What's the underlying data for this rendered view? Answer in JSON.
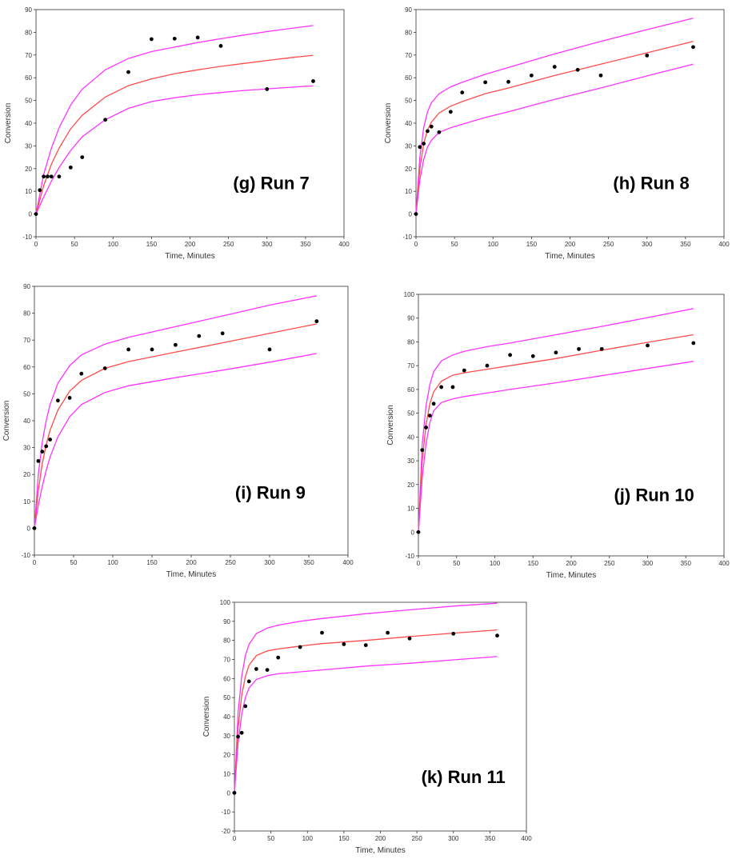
{
  "style": {
    "fit_color": "#ff4b4b",
    "bound_color": "#ff33ff",
    "point_color": "#000000"
  },
  "chart_data": [
    {
      "type": "scatter",
      "id": "g",
      "annotation": "(g) Run 7",
      "xlabel": "Time, Minutes",
      "ylabel": "Conversion",
      "xlim": [
        0,
        400
      ],
      "ylim": [
        -10,
        90
      ],
      "xticks": [
        0,
        50,
        100,
        150,
        200,
        250,
        300,
        350,
        400
      ],
      "yticks": [
        -10,
        0,
        10,
        20,
        30,
        40,
        50,
        60,
        70,
        80,
        90
      ],
      "grid": false,
      "series": [
        {
          "kind": "points",
          "x": [
            0,
            5,
            10,
            15,
            20,
            30,
            45,
            60,
            90,
            120,
            150,
            180,
            210,
            240,
            300,
            360
          ],
          "y": [
            0,
            10.5,
            16.5,
            16.5,
            16.5,
            16.5,
            20.5,
            25,
            41.5,
            62.5,
            77,
            77.2,
            77.7,
            74,
            55,
            58.5
          ]
        },
        {
          "kind": "upper",
          "x": [
            0,
            10,
            20,
            30,
            45,
            60,
            90,
            120,
            150,
            180,
            210,
            240,
            270,
            300,
            330,
            360
          ],
          "y": [
            0,
            17.5,
            29,
            38,
            48,
            55,
            63.5,
            68.5,
            71.5,
            73.5,
            75.5,
            77.2,
            78.8,
            80.3,
            81.7,
            83
          ]
        },
        {
          "kind": "fit",
          "x": [
            0,
            10,
            20,
            30,
            45,
            60,
            90,
            120,
            150,
            180,
            210,
            240,
            270,
            300,
            330,
            360
          ],
          "y": [
            0,
            12.5,
            22,
            29,
            37.5,
            43.5,
            51.5,
            56.5,
            59.5,
            61.8,
            63.5,
            65,
            66.3,
            67.6,
            68.8,
            69.9
          ]
        },
        {
          "kind": "lower",
          "x": [
            0,
            10,
            20,
            30,
            45,
            60,
            90,
            120,
            150,
            180,
            210,
            240,
            270,
            300,
            330,
            360
          ],
          "y": [
            0,
            7.5,
            14.5,
            20.5,
            28,
            34,
            41.5,
            46.5,
            49.5,
            51.2,
            52.5,
            53.5,
            54.4,
            55.1,
            55.8,
            56.4
          ]
        }
      ]
    },
    {
      "type": "scatter",
      "id": "h",
      "annotation": "(h) Run 8",
      "xlabel": "Time, Minutes",
      "ylabel": "Conversion",
      "xlim": [
        0,
        400
      ],
      "ylim": [
        -10,
        90
      ],
      "xticks": [
        0,
        50,
        100,
        150,
        200,
        250,
        300,
        350,
        400
      ],
      "yticks": [
        -10,
        0,
        10,
        20,
        30,
        40,
        50,
        60,
        70,
        80,
        90
      ],
      "grid": false,
      "series": [
        {
          "kind": "points",
          "x": [
            0,
            5,
            10,
            15,
            20,
            30,
            45,
            60,
            90,
            120,
            150,
            180,
            210,
            240,
            300,
            360
          ],
          "y": [
            0,
            29.5,
            31,
            36.5,
            38.5,
            36,
            45,
            53.5,
            58,
            58.2,
            61,
            64.8,
            63.5,
            61,
            69.8,
            73.5
          ]
        },
        {
          "kind": "upper",
          "x": [
            0,
            5,
            10,
            15,
            20,
            30,
            45,
            60,
            90,
            120,
            180,
            240,
            300,
            360
          ],
          "y": [
            0,
            25,
            38,
            45,
            49,
            53,
            56,
            58,
            61.5,
            64.5,
            70.5,
            76,
            81.2,
            86.2
          ]
        },
        {
          "kind": "fit",
          "x": [
            0,
            5,
            10,
            15,
            20,
            30,
            45,
            60,
            90,
            120,
            180,
            240,
            300,
            360
          ],
          "y": [
            0,
            20,
            31,
            37,
            40.5,
            44.5,
            47.5,
            49.5,
            53,
            55.5,
            61,
            66,
            71,
            76
          ]
        },
        {
          "kind": "lower",
          "x": [
            0,
            5,
            10,
            15,
            20,
            30,
            45,
            60,
            90,
            120,
            180,
            240,
            300,
            360
          ],
          "y": [
            0,
            15,
            24,
            29.5,
            32.5,
            36,
            38,
            39.5,
            42.5,
            45,
            50.5,
            55.5,
            60.8,
            66
          ]
        }
      ]
    },
    {
      "type": "scatter",
      "id": "i",
      "annotation": "(i) Run 9",
      "xlabel": "Time, Minutes",
      "ylabel": "Conversion",
      "xlim": [
        0,
        400
      ],
      "ylim": [
        -10,
        90
      ],
      "xticks": [
        0,
        50,
        100,
        150,
        200,
        250,
        300,
        350,
        400
      ],
      "yticks": [
        -10,
        0,
        10,
        20,
        30,
        40,
        50,
        60,
        70,
        80,
        90
      ],
      "grid": false,
      "series": [
        {
          "kind": "points",
          "x": [
            0,
            5,
            10,
            15,
            20,
            30,
            45,
            60,
            90,
            120,
            150,
            180,
            210,
            240,
            300,
            360
          ],
          "y": [
            0,
            25,
            28.5,
            30.5,
            33,
            47.5,
            48.5,
            57.5,
            59.5,
            66.5,
            66.5,
            68.2,
            71.5,
            72.5,
            66.5,
            77
          ]
        },
        {
          "kind": "upper",
          "x": [
            0,
            5,
            10,
            15,
            20,
            30,
            45,
            60,
            90,
            120,
            180,
            240,
            300,
            360
          ],
          "y": [
            0,
            20,
            32,
            40,
            46,
            54,
            60.5,
            64.5,
            68.5,
            71,
            75,
            79,
            83,
            86.5
          ]
        },
        {
          "kind": "fit",
          "x": [
            0,
            5,
            10,
            15,
            20,
            30,
            45,
            60,
            90,
            120,
            180,
            240,
            300,
            360
          ],
          "y": [
            0,
            14,
            24,
            31,
            36.5,
            44,
            51,
            55,
            59.5,
            62,
            65.5,
            69,
            72.5,
            76
          ]
        },
        {
          "kind": "lower",
          "x": [
            0,
            5,
            10,
            15,
            20,
            30,
            45,
            60,
            90,
            120,
            180,
            240,
            300,
            360
          ],
          "y": [
            0,
            8.5,
            15.5,
            21.5,
            26.5,
            34,
            41.5,
            46,
            50.5,
            53,
            56,
            58.8,
            61.8,
            65
          ]
        }
      ]
    },
    {
      "type": "scatter",
      "id": "j",
      "annotation": "(j) Run 10",
      "xlabel": "Time, Minutes",
      "ylabel": "Conversion",
      "xlim": [
        0,
        400
      ],
      "ylim": [
        -10,
        100
      ],
      "xticks": [
        0,
        50,
        100,
        150,
        200,
        250,
        300,
        350,
        400
      ],
      "yticks": [
        -10,
        0,
        10,
        20,
        30,
        40,
        50,
        60,
        70,
        80,
        90,
        100
      ],
      "grid": false,
      "series": [
        {
          "kind": "points",
          "x": [
            0,
            5,
            10,
            15,
            20,
            30,
            45,
            60,
            90,
            120,
            150,
            180,
            210,
            240,
            300,
            360
          ],
          "y": [
            0,
            34.5,
            44,
            49,
            54,
            61,
            61,
            68,
            70,
            74.5,
            74,
            75.5,
            77,
            77,
            78.5,
            79.5
          ]
        },
        {
          "kind": "upper",
          "x": [
            0,
            5,
            10,
            15,
            20,
            30,
            45,
            60,
            90,
            120,
            180,
            240,
            300,
            360
          ],
          "y": [
            0,
            37,
            53,
            62,
            67.5,
            72,
            74.5,
            76,
            78,
            79.5,
            83,
            86.5,
            90.2,
            94
          ]
        },
        {
          "kind": "fit",
          "x": [
            0,
            5,
            10,
            15,
            20,
            30,
            45,
            60,
            90,
            120,
            180,
            240,
            300,
            360
          ],
          "y": [
            0,
            30,
            45,
            54,
            59,
            63.5,
            66,
            67,
            68.5,
            70,
            73,
            76.5,
            79.8,
            83
          ]
        },
        {
          "kind": "lower",
          "x": [
            0,
            5,
            10,
            15,
            20,
            30,
            45,
            60,
            90,
            120,
            180,
            240,
            300,
            360
          ],
          "y": [
            0,
            23,
            37,
            46,
            51,
            54.5,
            56,
            57,
            58.5,
            60,
            62.8,
            65.8,
            68.8,
            71.8
          ]
        }
      ]
    },
    {
      "type": "scatter",
      "id": "k",
      "annotation": "(k) Run 11",
      "xlabel": "Time, Minutes",
      "ylabel": "Conversion",
      "xlim": [
        0,
        400
      ],
      "ylim": [
        -20,
        100
      ],
      "xticks": [
        0,
        50,
        100,
        150,
        200,
        250,
        300,
        350,
        400
      ],
      "yticks": [
        -20,
        -10,
        0,
        10,
        20,
        30,
        40,
        50,
        60,
        70,
        80,
        90,
        100
      ],
      "grid": false,
      "series": [
        {
          "kind": "points",
          "x": [
            0,
            5,
            10,
            15,
            20,
            30,
            45,
            60,
            90,
            120,
            150,
            180,
            210,
            240,
            300,
            360
          ],
          "y": [
            0,
            29.5,
            31.5,
            45.5,
            58.5,
            65,
            64.5,
            71,
            76.5,
            84,
            78,
            77.5,
            84,
            81,
            83.5,
            82.5
          ]
        },
        {
          "kind": "upper",
          "x": [
            0,
            5,
            10,
            15,
            20,
            30,
            45,
            60,
            90,
            120,
            180,
            240,
            300,
            360
          ],
          "y": [
            0,
            42,
            61,
            72,
            78,
            83.5,
            86.5,
            88,
            90,
            91.5,
            94,
            96,
            98,
            99.5
          ]
        },
        {
          "kind": "fit",
          "x": [
            0,
            5,
            10,
            15,
            20,
            30,
            45,
            60,
            90,
            120,
            180,
            240,
            300,
            360
          ],
          "y": [
            0,
            34,
            51,
            61,
            67,
            72,
            74.5,
            75.5,
            77,
            78.3,
            80,
            82,
            83.8,
            85.5
          ]
        },
        {
          "kind": "lower",
          "x": [
            0,
            5,
            10,
            15,
            20,
            30,
            45,
            60,
            90,
            120,
            180,
            240,
            300,
            360
          ],
          "y": [
            0,
            26,
            41,
            50,
            55,
            59.5,
            61.5,
            62.5,
            63.5,
            64.5,
            66.5,
            68,
            69.8,
            71.5
          ]
        }
      ]
    }
  ]
}
